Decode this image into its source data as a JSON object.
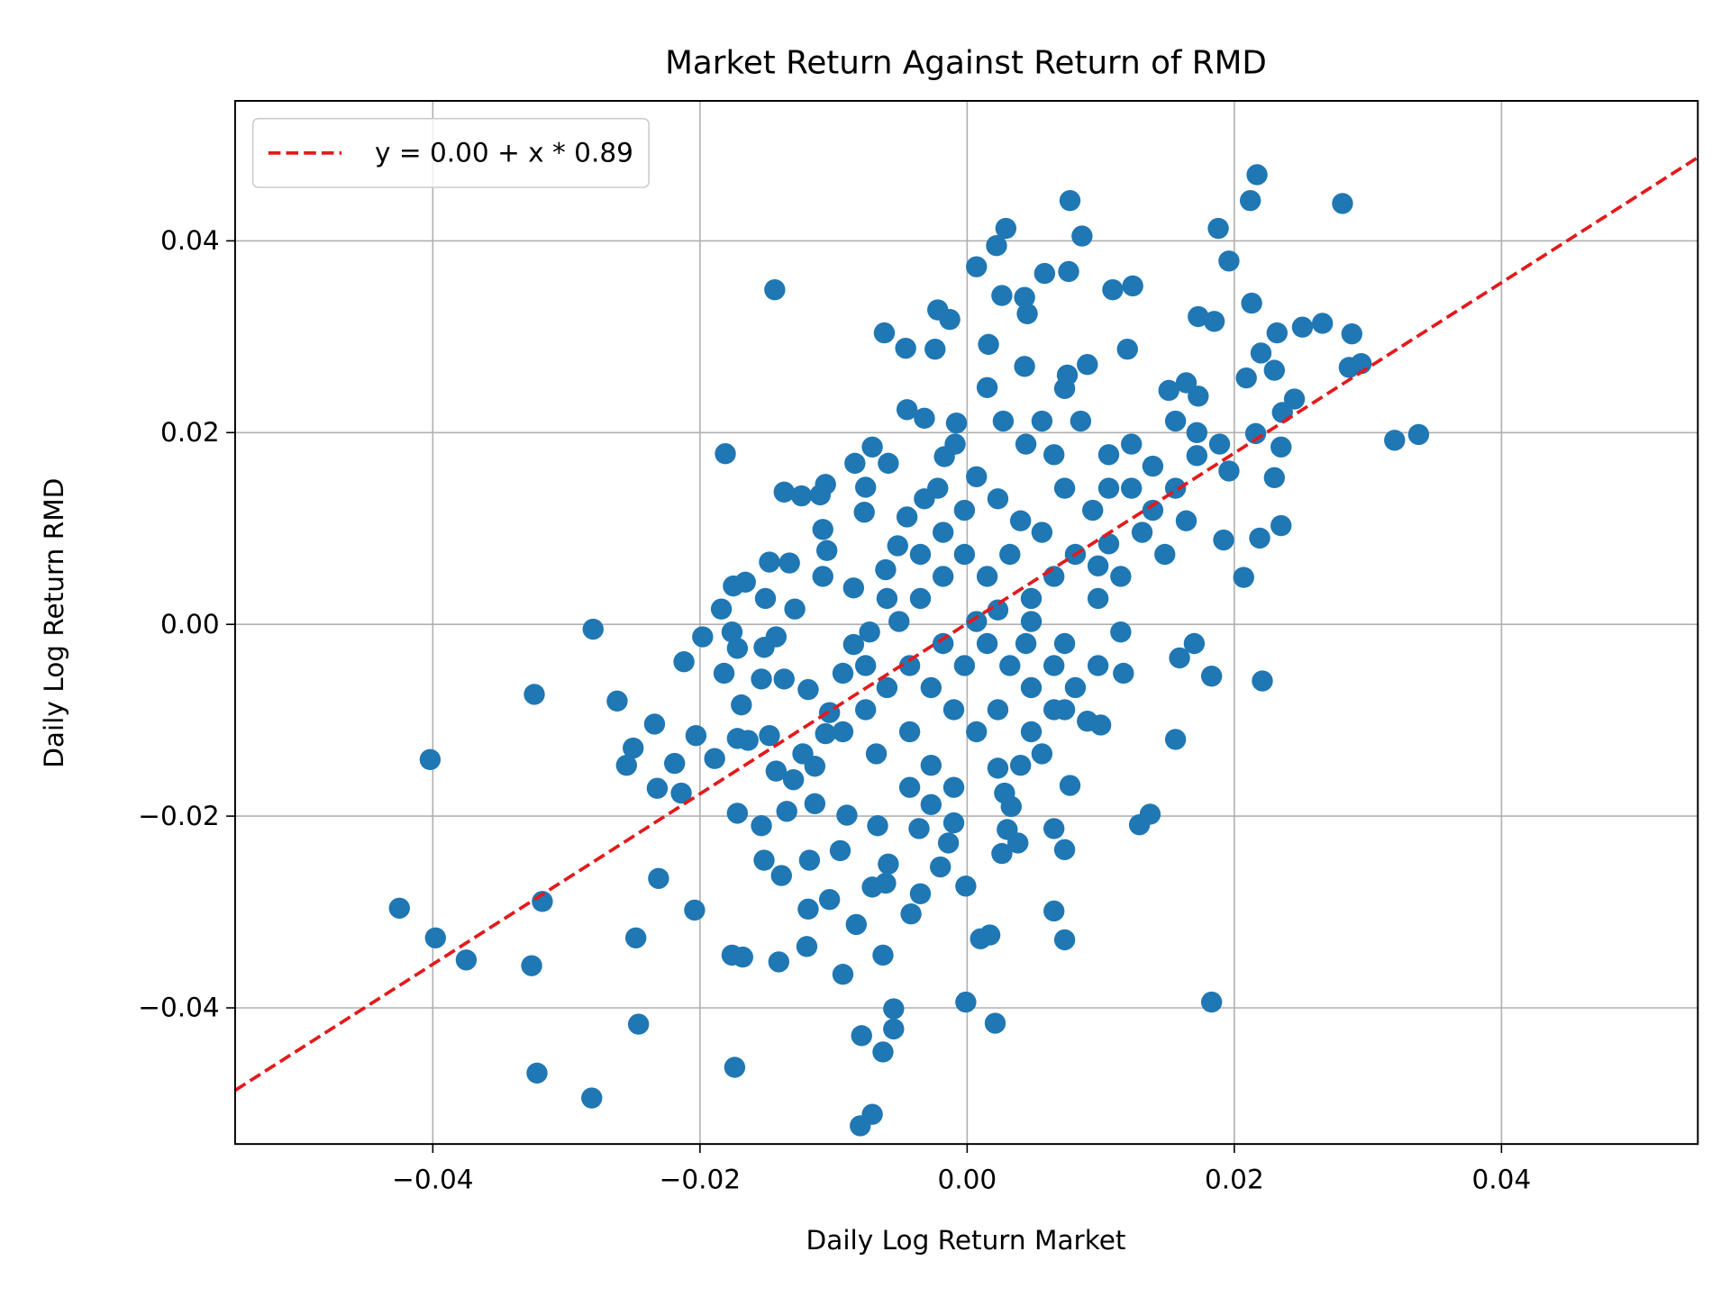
{
  "chart_data": {
    "type": "scatter",
    "title": "Market Return Against Return of RMD",
    "x_label": "Daily Log Return Market",
    "y_label": "Daily Log Return RMD",
    "xlim": [
      -0.0548,
      0.0547
    ],
    "ylim": [
      -0.0542,
      0.0546
    ],
    "xticks": [
      {
        "value": -0.04,
        "label": "−0.04"
      },
      {
        "value": -0.02,
        "label": "−0.02"
      },
      {
        "value": 0,
        "label": "0.00"
      },
      {
        "value": 0.02,
        "label": "0.02"
      },
      {
        "value": 0.04,
        "label": "0.04"
      }
    ],
    "yticks": [
      {
        "value": -0.04,
        "label": "−0.04"
      },
      {
        "value": -0.02,
        "label": "−0.02"
      },
      {
        "value": 0,
        "label": "0.00"
      },
      {
        "value": 0.02,
        "label": "0.02"
      },
      {
        "value": 0.04,
        "label": "0.04"
      }
    ],
    "grid": true,
    "legend_position": "upper-left",
    "scatter": {
      "color": "#1f77b4",
      "x": [
        0.0217,
        0.0212,
        0.0077,
        0.0281,
        0.0029,
        0.0086,
        0.0188,
        0.0022,
        0.0007,
        0.0196,
        0.0058,
        0.0076,
        -0.0144,
        0.0109,
        0.0124,
        0.0026,
        0.0043,
        0.0213,
        -0.0022,
        -0.0013,
        0.0045,
        -0.0062,
        0.0173,
        0.0185,
        0.0232,
        0.0251,
        0.0266,
        0.0288,
        0.0016,
        -0.0046,
        -0.0024,
        0.012,
        0.022,
        0.0295,
        0.0286,
        0.023,
        0.0043,
        0.009,
        0.0209,
        0.0075,
        0.0015,
        0.0151,
        0.0164,
        0.0173,
        0.0245,
        0.0236,
        -0.0045,
        0.032,
        0.0338,
        0.0216,
        0.0235,
        -0.0181,
        0.0196,
        0.023,
        0.0235,
        0.0219,
        0.0192,
        0.0207,
        0.0221,
        0.0183,
        -0.028,
        -0.0324,
        -0.0262,
        -0.0402,
        -0.0234,
        -0.0203,
        -0.025,
        -0.0255,
        -0.0219,
        -0.0232,
        -0.0214,
        -0.0189,
        -0.0212,
        -0.0198,
        -0.0425,
        -0.0398,
        -0.0375,
        -0.0318,
        -0.0326,
        -0.0322,
        -0.0281,
        -0.0231,
        -0.0248,
        -0.0246,
        -0.0204,
        -0.0174,
        -0.0176,
        -0.0168,
        -0.0141,
        -0.012,
        -0.0093,
        -0.0083,
        -0.008,
        -0.0071,
        -0.0079,
        -0.0063,
        -0.0055,
        -0.0055,
        -0.0063,
        -0.0001,
        0.0021,
        0.001,
        0.0017,
        -0.0001,
        -0.0042,
        -0.0035,
        0.0065,
        0.0073,
        0.0073,
        0.0065,
        0.0077,
        0.0183,
        0.0129,
        0.0137,
        0.0156,
        0.0159,
        0.017,
        0.0117,
        -0.0152,
        -0.0139,
        -0.0118,
        -0.0119,
        -0.0103,
        -0.0095,
        -0.009,
        -0.0071,
        -0.0061,
        -0.0059,
        -0.0067,
        0.0026,
        0.0038,
        0.003,
        0.0033,
        0.0028,
        -0.0154,
        -0.0172,
        -0.0135,
        -0.0114,
        -0.002,
        -0.0014,
        -0.001,
        -0.0036,
        -0.0027,
        -0.0133,
        -0.0148,
        -0.011,
        -0.0124,
        -0.0137,
        -0.0106,
        -0.0084,
        -0.0071,
        -0.0059,
        -0.0076,
        -0.0077,
        -0.0108,
        -0.0105,
        -0.0108,
        -0.0175,
        -0.0166,
        -0.0151,
        -0.0129,
        -0.0184,
        -0.0176,
        -0.0172,
        -0.0182,
        -0.0152,
        -0.0143,
        -0.0154,
        -0.0137,
        -0.0169,
        -0.0172,
        -0.0164,
        -0.0148,
        -0.0143,
        -0.013,
        -0.0114,
        -0.0123,
        -0.0106,
        -0.0119,
        -0.0103,
        -0.0093,
        -0.0085,
        -0.0073,
        -0.0085,
        -0.0061,
        -0.0052,
        -0.0045,
        -0.0032,
        -0.0022,
        -0.0017,
        -0.0008,
        -0.0032,
        -0.0009,
        0.0007,
        0.0023,
        0.004,
        0.0056,
        0.0073,
        0.0094,
        0.0106,
        0.0123,
        0.0139,
        0.0156,
        0.0131,
        0.0148,
        0.0115,
        0.0098,
        0.0081,
        0.0065,
        0.0048,
        0.0032,
        0.0015,
        -0.0002,
        -0.0018,
        -0.0035,
        -0.0051,
        -0.0018,
        -0.0002,
        0.0015,
        0.0032,
        0.0048,
        0.0065,
        0.0081,
        0.0023,
        0.0007,
        -0.001,
        -0.0027,
        -0.0043,
        -0.006,
        -0.0076,
        -0.0093,
        -0.0068,
        -0.0043,
        -0.0027,
        -0.001,
        -0.0043,
        0.0048,
        0.0065,
        0.0098,
        0.0115,
        0.0073,
        0.0048,
        0.0098,
        0.0106,
        0.0164,
        0.0172,
        0.0189,
        -0.0002,
        -0.0018,
        -0.0035,
        -0.006,
        -0.0076,
        0.0007,
        0.0023,
        0.0044,
        0.0073,
        0.009,
        0.01,
        0.0056,
        0.004,
        0.0023,
        0.0056,
        0.0073,
        0.0085,
        0.0027,
        0.0044,
        0.0065,
        0.0106,
        0.0123,
        0.0139,
        0.0156,
        0.0172
      ],
      "y": [
        0.0469,
        0.0442,
        0.0442,
        0.0439,
        0.0413,
        0.0405,
        0.0413,
        0.0395,
        0.0373,
        0.0379,
        0.0366,
        0.0368,
        0.0349,
        0.0349,
        0.0353,
        0.0343,
        0.0341,
        0.0335,
        0.0328,
        0.0318,
        0.0324,
        0.0304,
        0.0321,
        0.0316,
        0.0304,
        0.031,
        0.0314,
        0.0303,
        0.0292,
        0.0288,
        0.0287,
        0.0287,
        0.0283,
        0.0272,
        0.0268,
        0.0265,
        0.0269,
        0.0271,
        0.0257,
        0.026,
        0.0247,
        0.0244,
        0.0252,
        0.0238,
        0.0235,
        0.0221,
        0.0224,
        0.0192,
        0.0198,
        0.0199,
        0.0185,
        0.0178,
        0.016,
        0.0153,
        0.0103,
        0.009,
        0.0088,
        0.0049,
        -0.0059,
        -0.0054,
        -0.0005,
        -0.0073,
        -0.008,
        -0.0141,
        -0.0104,
        -0.0116,
        -0.0129,
        -0.0147,
        -0.0145,
        -0.0171,
        -0.0176,
        -0.014,
        -0.0039,
        -0.0013,
        -0.0296,
        -0.0327,
        -0.035,
        -0.0289,
        -0.0356,
        -0.0468,
        -0.0494,
        -0.0265,
        -0.0327,
        -0.0417,
        -0.0298,
        -0.0462,
        -0.0345,
        -0.0347,
        -0.0352,
        -0.0336,
        -0.0365,
        -0.0313,
        -0.0523,
        -0.0511,
        -0.0429,
        -0.0446,
        -0.0401,
        -0.0422,
        -0.0345,
        -0.0394,
        -0.0416,
        -0.0328,
        -0.0324,
        -0.0273,
        -0.0302,
        -0.0281,
        -0.0299,
        -0.0329,
        -0.0235,
        -0.0213,
        -0.0168,
        -0.0394,
        -0.0209,
        -0.0198,
        -0.012,
        -0.0035,
        -0.002,
        -0.0051,
        -0.0246,
        -0.0262,
        -0.0246,
        -0.0297,
        -0.0287,
        -0.0236,
        -0.0199,
        -0.0274,
        -0.027,
        -0.025,
        -0.021,
        -0.0239,
        -0.0228,
        -0.0214,
        -0.019,
        -0.0176,
        -0.021,
        -0.0197,
        -0.0195,
        -0.0187,
        -0.0253,
        -0.0228,
        -0.0207,
        -0.0213,
        -0.0188,
        0.0064,
        0.0065,
        0.0135,
        0.0134,
        0.0138,
        0.0146,
        0.0168,
        0.0185,
        0.0168,
        0.0143,
        0.0117,
        0.0099,
        0.0077,
        0.005,
        0.004,
        0.0044,
        0.0027,
        0.0016,
        0.0016,
        -0.0008,
        -0.0025,
        -0.0051,
        -0.0024,
        -0.0013,
        -0.0057,
        -0.0057,
        -0.0084,
        -0.0119,
        -0.0121,
        -0.0116,
        -0.0153,
        -0.0162,
        -0.0148,
        -0.0135,
        -0.0114,
        -0.0068,
        -0.0092,
        -0.0051,
        -0.0021,
        -0.0008,
        0.0038,
        0.0057,
        0.0082,
        0.0112,
        0.0131,
        0.0142,
        0.0175,
        0.021,
        0.0215,
        0.0188,
        0.0154,
        0.0131,
        0.0108,
        0.0096,
        0.0142,
        0.0119,
        0.0142,
        0.0188,
        0.0165,
        0.0142,
        0.0096,
        0.0073,
        0.005,
        0.0027,
        0.0073,
        0.005,
        0.0027,
        0.0073,
        0.005,
        0.0073,
        0.005,
        0.0027,
        0.0003,
        -0.002,
        -0.0043,
        -0.002,
        -0.0043,
        -0.0066,
        -0.0043,
        -0.0066,
        -0.0089,
        -0.0112,
        -0.0089,
        -0.0066,
        -0.0043,
        -0.0066,
        -0.0089,
        -0.0112,
        -0.0135,
        -0.0112,
        -0.0147,
        -0.017,
        -0.017,
        -0.0112,
        -0.0089,
        -0.0043,
        -0.0008,
        -0.002,
        0.0003,
        0.0061,
        0.0084,
        0.0108,
        0.0176,
        0.0188,
        0.0119,
        0.0096,
        0.0073,
        0.0027,
        -0.0043,
        0.0003,
        0.0015,
        -0.002,
        -0.0089,
        -0.0101,
        -0.0105,
        -0.0135,
        -0.0147,
        -0.015,
        0.0212,
        0.0246,
        0.0212,
        0.0212,
        0.0188,
        0.0177,
        0.0177,
        0.0142,
        0.0119,
        0.0212,
        0.02
      ]
    },
    "fit_line": {
      "name": "y = 0.00 + x * 0.89",
      "color": "#e31a1c",
      "x": [
        -0.0548,
        0.0547
      ],
      "y": [
        -0.0486,
        0.0487
      ]
    }
  }
}
